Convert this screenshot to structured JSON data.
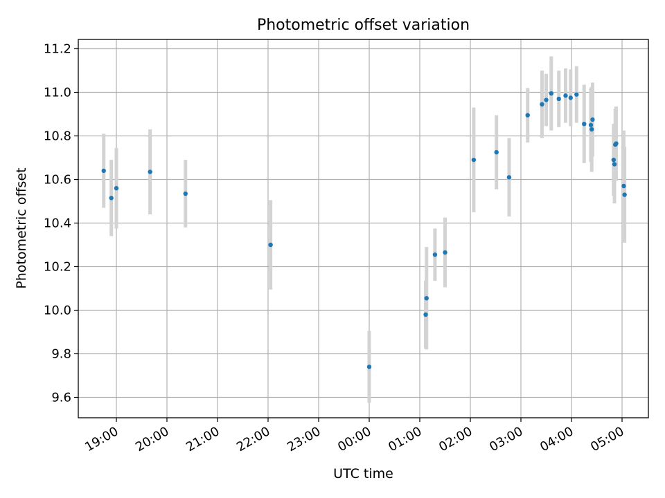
{
  "chart_data": {
    "type": "scatter",
    "title": "Photometric offset variation",
    "xlabel": "UTC time",
    "ylabel": "Photometric offset",
    "x_axis_type": "time",
    "x_ticks": [
      "19:00",
      "20:00",
      "21:00",
      "22:00",
      "23:00",
      "00:00",
      "01:00",
      "02:00",
      "03:00",
      "04:00",
      "05:00"
    ],
    "y_ticks": [
      "9.6",
      "9.8",
      "10.0",
      "10.2",
      "10.4",
      "10.6",
      "10.8",
      "11.0",
      "11.2"
    ],
    "ylim": [
      9.5,
      11.245
    ],
    "grid": true,
    "colors": {
      "point": "#1f77b4",
      "errorbar": "#d3d3d3",
      "grid": "#b0b0b0"
    },
    "points": [
      {
        "x": "18:45",
        "y": 10.64,
        "err": 0.17
      },
      {
        "x": "18:54",
        "y": 10.515,
        "err": 0.175
      },
      {
        "x": "19:00",
        "y": 10.56,
        "err": 0.185
      },
      {
        "x": "19:40",
        "y": 10.635,
        "err": 0.195
      },
      {
        "x": "20:22",
        "y": 10.535,
        "err": 0.155
      },
      {
        "x": "22:03",
        "y": 10.3,
        "err": 0.205
      },
      {
        "x": "00:00",
        "y": 9.74,
        "err": 0.165
      },
      {
        "x": "01:07",
        "y": 9.98,
        "err": 0.155
      },
      {
        "x": "01:08",
        "y": 10.055,
        "err": 0.235
      },
      {
        "x": "01:18",
        "y": 10.255,
        "err": 0.12
      },
      {
        "x": "01:30",
        "y": 10.265,
        "err": 0.16
      },
      {
        "x": "02:04",
        "y": 10.69,
        "err": 0.24
      },
      {
        "x": "02:31",
        "y": 10.725,
        "err": 0.17
      },
      {
        "x": "02:46",
        "y": 10.61,
        "err": 0.18
      },
      {
        "x": "03:08",
        "y": 10.895,
        "err": 0.125
      },
      {
        "x": "03:25",
        "y": 10.945,
        "err": 0.155
      },
      {
        "x": "03:30",
        "y": 10.965,
        "err": 0.12
      },
      {
        "x": "03:36",
        "y": 10.995,
        "err": 0.17
      },
      {
        "x": "03:45",
        "y": 10.97,
        "err": 0.13
      },
      {
        "x": "03:53",
        "y": 10.985,
        "err": 0.125
      },
      {
        "x": "03:59",
        "y": 10.975,
        "err": 0.13
      },
      {
        "x": "04:06",
        "y": 10.99,
        "err": 0.13
      },
      {
        "x": "04:15",
        "y": 10.855,
        "err": 0.18
      },
      {
        "x": "04:23",
        "y": 10.85,
        "err": 0.17
      },
      {
        "x": "04:24",
        "y": 10.83,
        "err": 0.195
      },
      {
        "x": "04:25",
        "y": 10.875,
        "err": 0.17
      },
      {
        "x": "04:50",
        "y": 10.69,
        "err": 0.165
      },
      {
        "x": "04:51",
        "y": 10.67,
        "err": 0.18
      },
      {
        "x": "04:52",
        "y": 10.76,
        "err": 0.165
      },
      {
        "x": "04:53",
        "y": 10.765,
        "err": 0.17
      },
      {
        "x": "05:02",
        "y": 10.57,
        "err": 0.255
      },
      {
        "x": "05:03",
        "y": 10.53,
        "err": 0.22
      }
    ]
  }
}
